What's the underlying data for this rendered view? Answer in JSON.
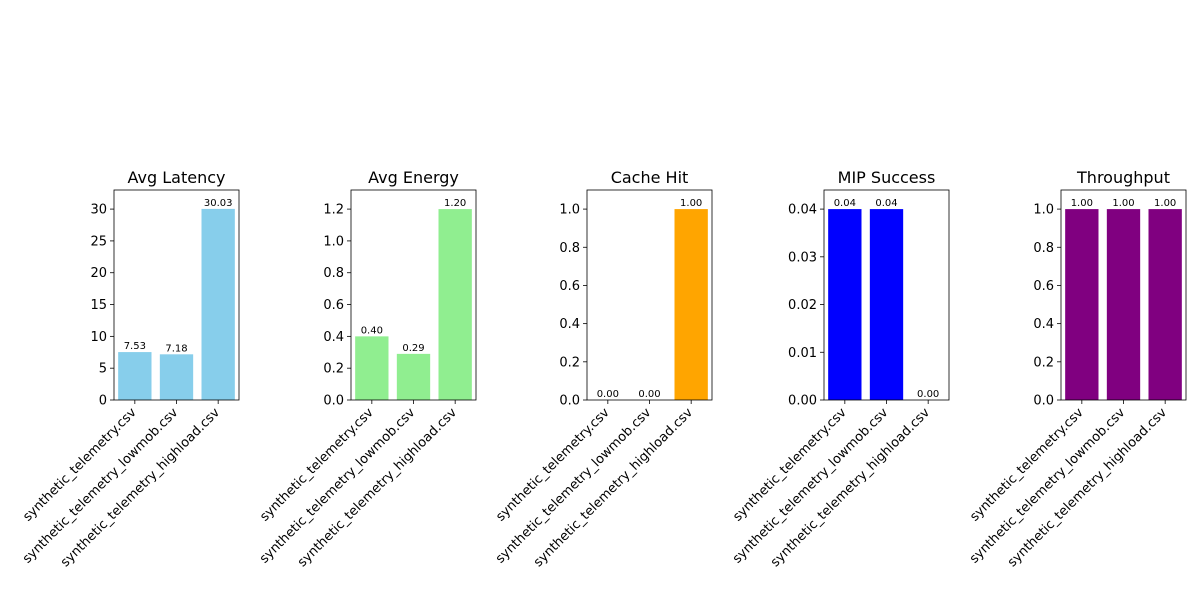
{
  "chart_data": [
    {
      "type": "bar",
      "title": "Avg Latency",
      "categories": [
        "synthetic_telemetry.csv",
        "synthetic_telemetry_lowmob.csv",
        "synthetic_telemetry_highload.csv"
      ],
      "values": [
        7.53,
        7.18,
        30.03
      ],
      "data_labels": [
        "7.53",
        "7.18",
        "30.03"
      ],
      "color": "#87CEEB",
      "ylim": [
        0,
        33
      ],
      "yticks": [
        0,
        5,
        10,
        15,
        20,
        25,
        30
      ],
      "ytick_labels": [
        "0",
        "5",
        "10",
        "15",
        "20",
        "25",
        "30"
      ],
      "xlabel": "",
      "ylabel": ""
    },
    {
      "type": "bar",
      "title": "Avg Energy",
      "categories": [
        "synthetic_telemetry.csv",
        "synthetic_telemetry_lowmob.csv",
        "synthetic_telemetry_highload.csv"
      ],
      "values": [
        0.4,
        0.29,
        1.2
      ],
      "data_labels": [
        "0.40",
        "0.29",
        "1.20"
      ],
      "color": "#90EE90",
      "ylim": [
        0,
        1.32
      ],
      "yticks": [
        0,
        0.2,
        0.4,
        0.6,
        0.8,
        1.0,
        1.2
      ],
      "ytick_labels": [
        "0.0",
        "0.2",
        "0.4",
        "0.6",
        "0.8",
        "1.0",
        "1.2"
      ],
      "xlabel": "",
      "ylabel": ""
    },
    {
      "type": "bar",
      "title": "Cache Hit",
      "categories": [
        "synthetic_telemetry.csv",
        "synthetic_telemetry_lowmob.csv",
        "synthetic_telemetry_highload.csv"
      ],
      "values": [
        0.0,
        0.0,
        1.0
      ],
      "data_labels": [
        "0.00",
        "0.00",
        "1.00"
      ],
      "color": "#FFA500",
      "ylim": [
        0,
        1.1
      ],
      "yticks": [
        0,
        0.2,
        0.4,
        0.6,
        0.8,
        1.0
      ],
      "ytick_labels": [
        "0.0",
        "0.2",
        "0.4",
        "0.6",
        "0.8",
        "1.0"
      ],
      "xlabel": "",
      "ylabel": ""
    },
    {
      "type": "bar",
      "title": "MIP Success",
      "categories": [
        "synthetic_telemetry.csv",
        "synthetic_telemetry_lowmob.csv",
        "synthetic_telemetry_highload.csv"
      ],
      "values": [
        0.04,
        0.04,
        0.0
      ],
      "data_labels": [
        "0.04",
        "0.04",
        "0.00"
      ],
      "color": "#0000FF",
      "ylim": [
        0,
        0.044
      ],
      "yticks": [
        0,
        0.01,
        0.02,
        0.03,
        0.04
      ],
      "ytick_labels": [
        "0.00",
        "0.01",
        "0.02",
        "0.03",
        "0.04"
      ],
      "xlabel": "",
      "ylabel": ""
    },
    {
      "type": "bar",
      "title": "Throughput",
      "categories": [
        "synthetic_telemetry.csv",
        "synthetic_telemetry_lowmob.csv",
        "synthetic_telemetry_highload.csv"
      ],
      "values": [
        1.0,
        1.0,
        1.0
      ],
      "data_labels": [
        "1.00",
        "1.00",
        "1.00"
      ],
      "color": "#800080",
      "ylim": [
        0,
        1.1
      ],
      "yticks": [
        0,
        0.2,
        0.4,
        0.6,
        0.8,
        1.0
      ],
      "ytick_labels": [
        "0.0",
        "0.2",
        "0.4",
        "0.6",
        "0.8",
        "1.0"
      ],
      "xlabel": "",
      "ylabel": ""
    }
  ]
}
